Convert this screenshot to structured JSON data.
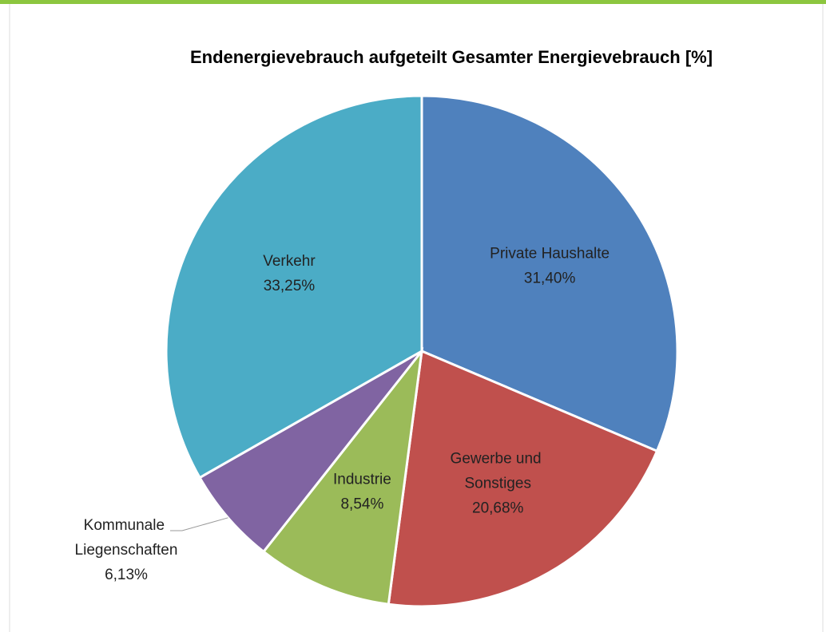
{
  "chart_data": {
    "type": "pie",
    "title": "Endenergievebrauch aufgeteilt Gesamter Energievebrauch [%]",
    "categories": [
      "Private Haushalte",
      "Gewerbe und Sonstiges",
      "Industrie",
      "Kommunale Liegenschaften",
      "Verkehr"
    ],
    "values": [
      31.4,
      20.68,
      8.54,
      6.13,
      33.25
    ],
    "value_labels": [
      "31,40%",
      "20,68%",
      "8,54%",
      "6,13%",
      "33,25%"
    ],
    "colors": [
      "#4f81bd",
      "#c0504d",
      "#9bbb59",
      "#8064a2",
      "#4bacc6"
    ]
  }
}
